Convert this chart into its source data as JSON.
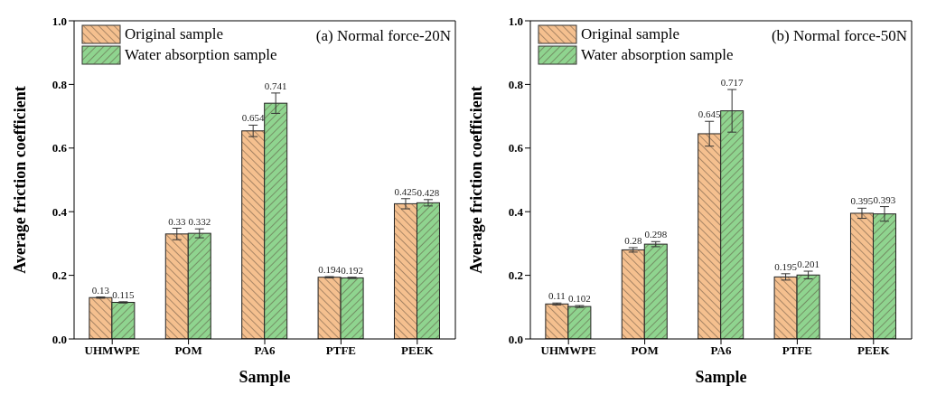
{
  "chart_data": [
    {
      "type": "bar",
      "title": "(a) Normal force-20N",
      "xlabel": "Sample",
      "ylabel": "Average friction coefficient",
      "categories": [
        "UHMWPE",
        "POM",
        "PA6",
        "PTFE",
        "PEEK"
      ],
      "series": [
        {
          "name": "Original sample",
          "color": "#f5c08f",
          "values": [
            0.13,
            0.33,
            0.654,
            0.194,
            0.425
          ],
          "errors": [
            0.002,
            0.018,
            0.018,
            0.002,
            0.016
          ]
        },
        {
          "name": "Water absorption sample",
          "color": "#8fd48f",
          "values": [
            0.115,
            0.332,
            0.741,
            0.192,
            0.428
          ],
          "errors": [
            0.002,
            0.014,
            0.032,
            0.002,
            0.01
          ]
        }
      ],
      "ylim": [
        0,
        1
      ],
      "yticks": [
        {
          "value": 0,
          "label": "0.0"
        },
        {
          "value": 0.2,
          "label": "0.2"
        },
        {
          "value": 0.4,
          "label": "0.4"
        },
        {
          "value": 0.6,
          "label": "0.6"
        },
        {
          "value": 0.8,
          "label": "0.8"
        },
        {
          "value": 1,
          "label": "1.0"
        }
      ],
      "data_labels": true,
      "grid": false,
      "legend": "top left"
    },
    {
      "type": "bar",
      "title": "(b) Normal force-50N",
      "xlabel": "Sample",
      "ylabel": "Average friction coefficient",
      "categories": [
        "UHMWPE",
        "POM",
        "PA6",
        "PTFE",
        "PEEK"
      ],
      "series": [
        {
          "name": "Original sample",
          "color": "#f5c08f",
          "values": [
            0.11,
            0.28,
            0.645,
            0.195,
            0.395
          ],
          "errors": [
            0.003,
            0.007,
            0.039,
            0.01,
            0.016
          ]
        },
        {
          "name": "Water absorption sample",
          "color": "#8fd48f",
          "values": [
            0.102,
            0.298,
            0.717,
            0.201,
            0.393
          ],
          "errors": [
            0.003,
            0.008,
            0.067,
            0.012,
            0.023
          ]
        }
      ],
      "ylim": [
        0,
        1
      ],
      "yticks": [
        {
          "value": 0,
          "label": "0.0"
        },
        {
          "value": 0.2,
          "label": "0.2"
        },
        {
          "value": 0.4,
          "label": "0.4"
        },
        {
          "value": 0.6,
          "label": "0.6"
        },
        {
          "value": 0.8,
          "label": "0.8"
        },
        {
          "value": 1,
          "label": "1.0"
        }
      ],
      "data_labels": true,
      "grid": false,
      "legend": "top left"
    }
  ]
}
